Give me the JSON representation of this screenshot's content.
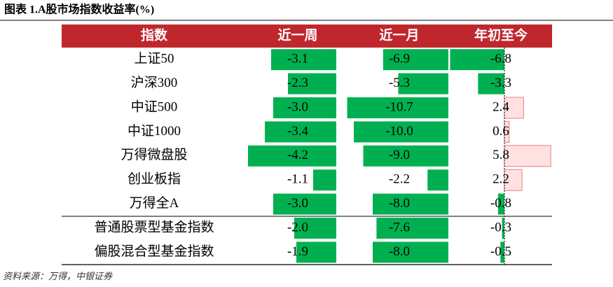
{
  "title": "图表 1.A股市场指数收益率(%)",
  "table": {
    "header": [
      "指数",
      "近一周",
      "近一月",
      "年初至今"
    ],
    "rows": [
      {
        "name": "上证50",
        "values": [
          -3.1,
          -6.9,
          -6.8
        ],
        "value_labels": [
          "-3.1",
          "-6.9",
          "-6.8"
        ]
      },
      {
        "name": "沪深300",
        "values": [
          -2.3,
          -5.3,
          -3.3
        ],
        "value_labels": [
          "-2.3",
          "-5.3",
          "-3.3"
        ]
      },
      {
        "name": "中证500",
        "values": [
          -3.0,
          -10.7,
          2.4
        ],
        "value_labels": [
          "-3.0",
          "-10.7",
          "2.4"
        ]
      },
      {
        "name": "中证1000",
        "values": [
          -3.4,
          -10.0,
          0.6
        ],
        "value_labels": [
          "-3.4",
          "-10.0",
          "0.6"
        ]
      },
      {
        "name": "万得微盘股",
        "values": [
          -4.2,
          -9.0,
          5.8
        ],
        "value_labels": [
          "-4.2",
          "-9.0",
          "5.8"
        ]
      },
      {
        "name": "创业板指",
        "values": [
          -1.1,
          -2.2,
          2.2
        ],
        "value_labels": [
          "-1.1",
          "-2.2",
          "2.2"
        ]
      },
      {
        "name": "万得全A",
        "values": [
          -3.0,
          -8.0,
          -0.8
        ],
        "value_labels": [
          "-3.0",
          "-8.0",
          "-0.8"
        ]
      },
      {
        "name": "普通股票型基金指数",
        "values": [
          -2.0,
          -7.6,
          -0.3
        ],
        "value_labels": [
          "-2.0",
          "-7.6",
          "-0.3"
        ]
      },
      {
        "name": "偏股混合型基金指数",
        "values": [
          -1.9,
          -8.0,
          -0.5
        ],
        "value_labels": [
          "-1.9",
          "-8.0",
          "-0.5"
        ]
      }
    ]
  },
  "source": "资料来源：万得，中银证券"
}
